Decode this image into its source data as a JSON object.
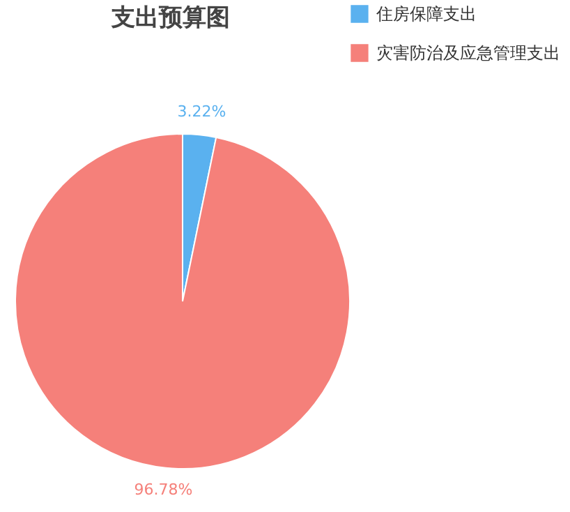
{
  "chart_data": {
    "type": "pie",
    "title": "支出预算图",
    "categories": [
      "住房保障支出",
      "灾害防治及应急管理支出"
    ],
    "values": [
      3.22,
      96.78
    ],
    "colors": [
      "#5ab1ef",
      "#f5807a"
    ],
    "value_labels": [
      "3.22%",
      "96.78%"
    ],
    "legend": "top right"
  }
}
